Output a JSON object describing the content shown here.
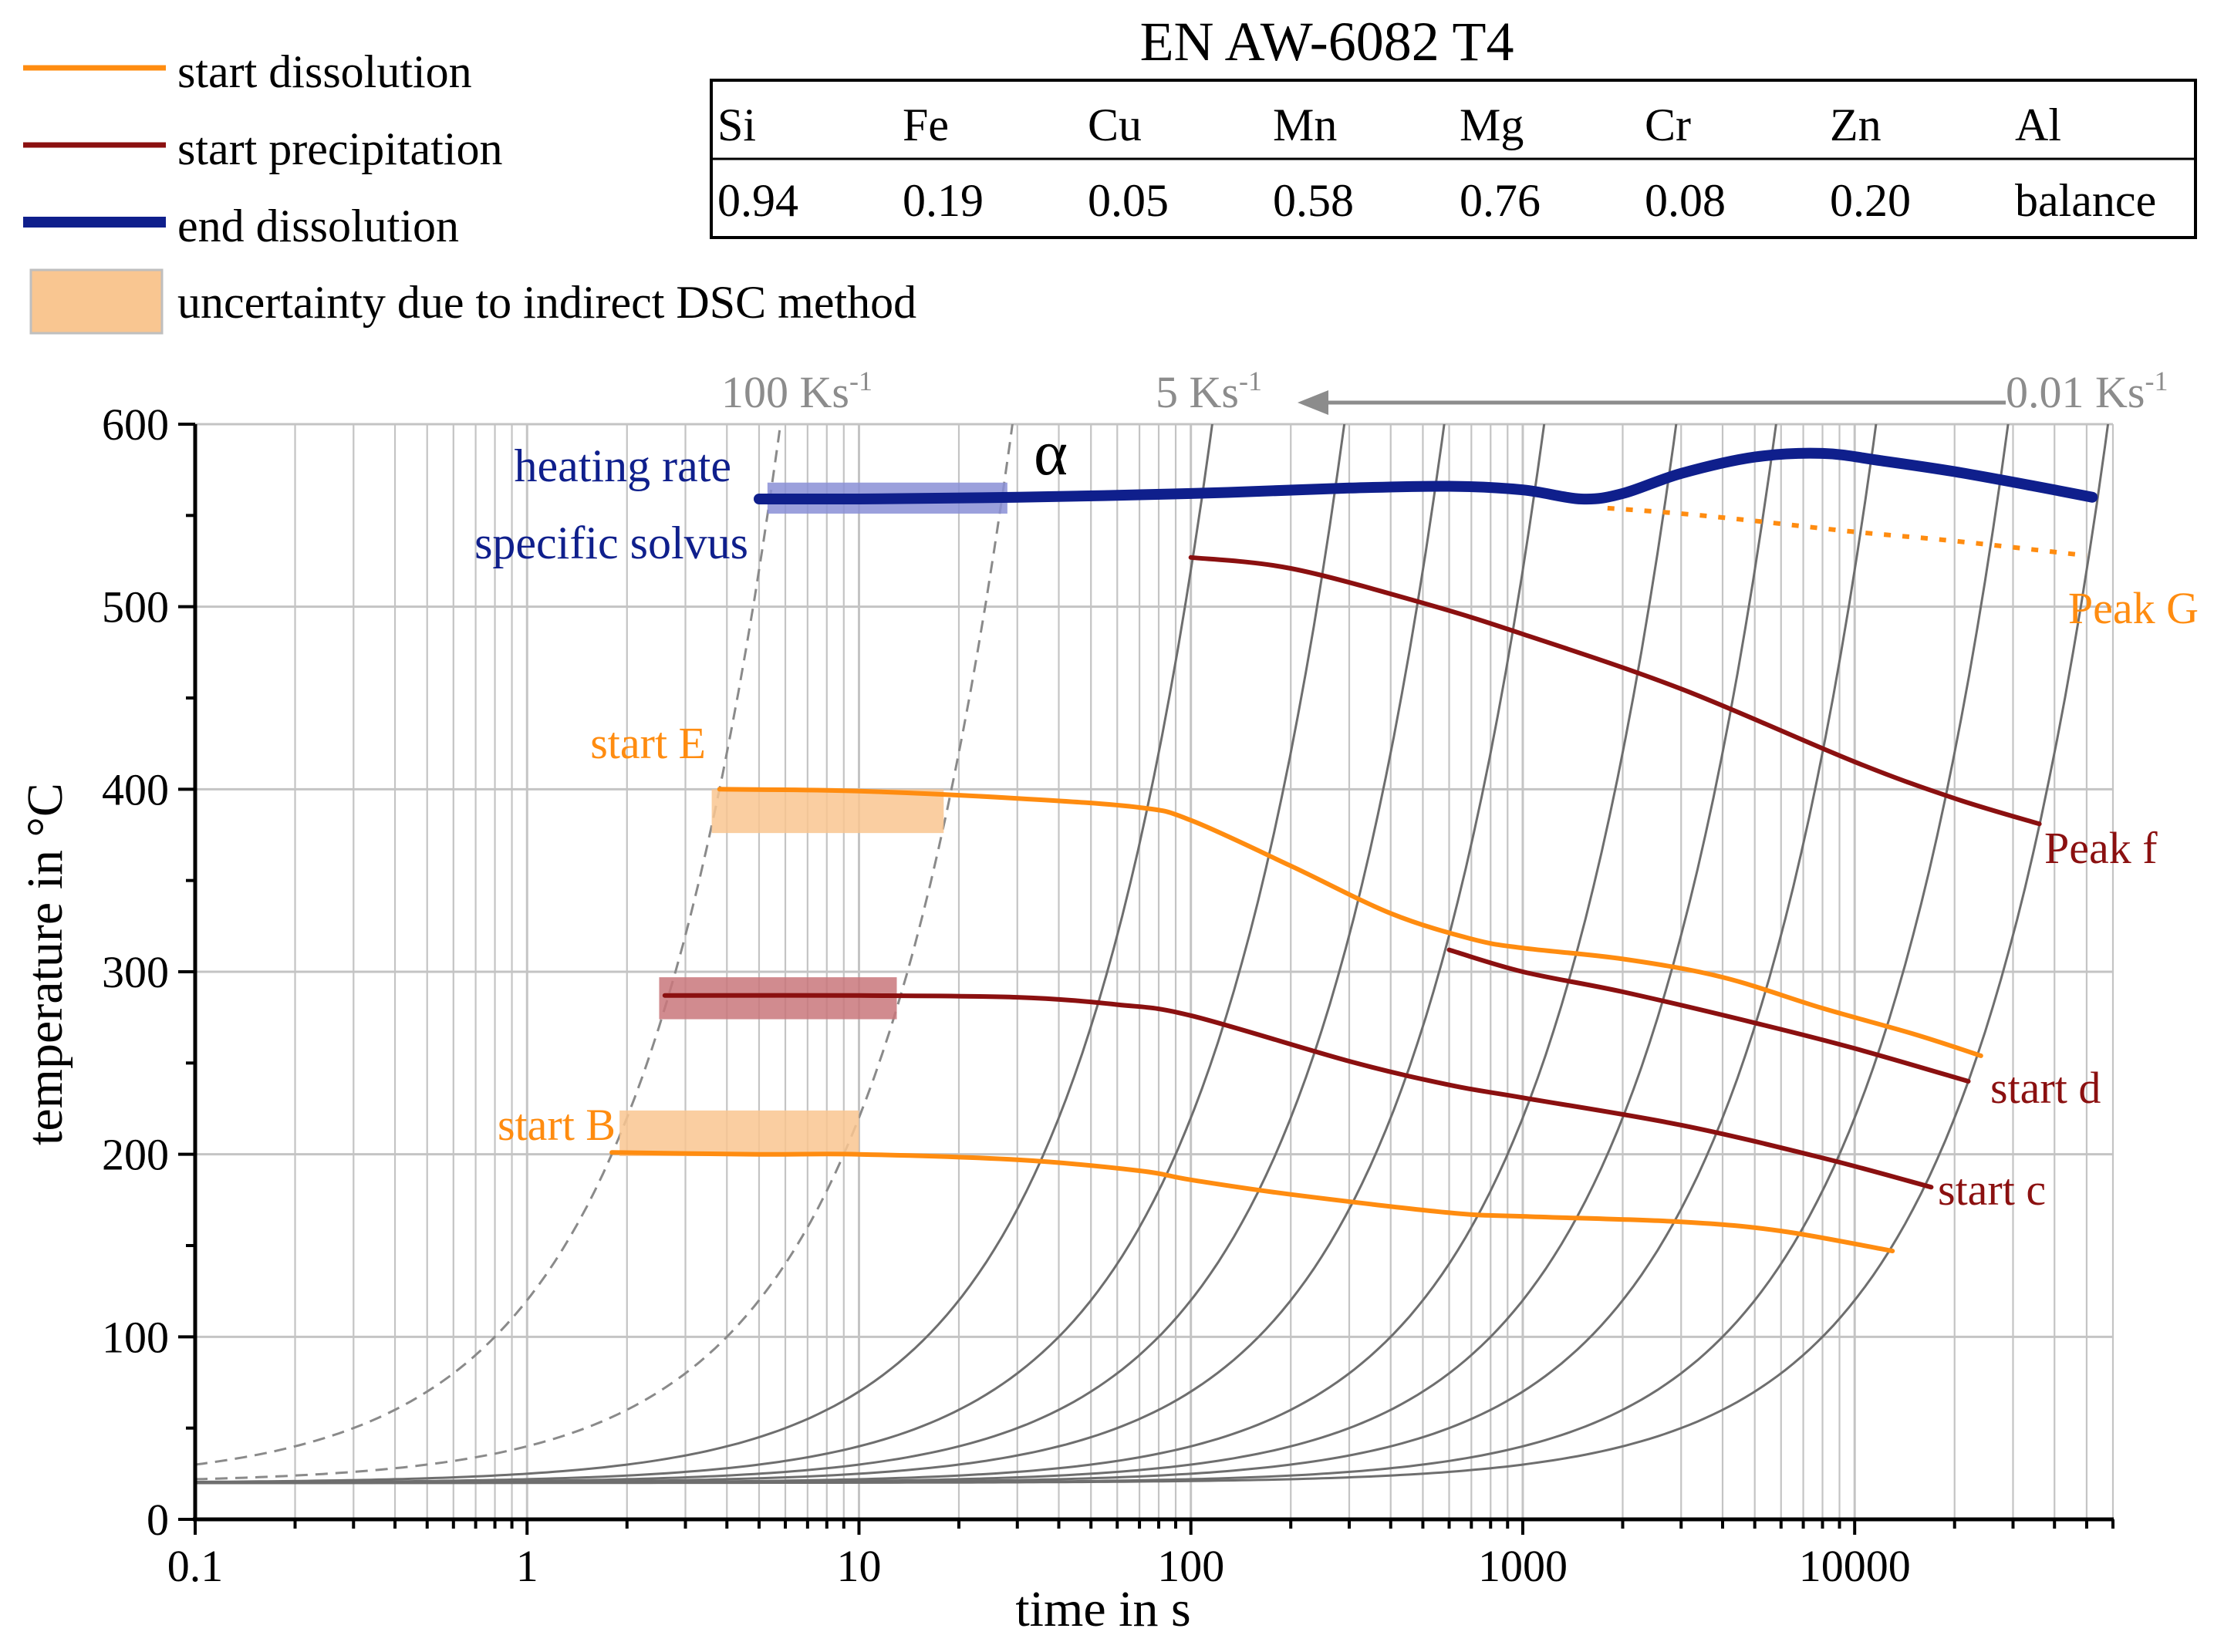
{
  "chart_data": {
    "type": "line",
    "title": "EN AW-6082 T4",
    "xlabel": "time in s",
    "ylabel": "temperature in °C",
    "xscale": "log",
    "xlim": [
      0.1,
      60000
    ],
    "ylim": [
      0,
      600
    ],
    "x_ticks": [
      {
        "value": 0.1,
        "label": "0.1"
      },
      {
        "value": 1,
        "label": "1"
      },
      {
        "value": 10,
        "label": "10"
      },
      {
        "value": 100,
        "label": "100"
      },
      {
        "value": 1000,
        "label": "1000"
      },
      {
        "value": 10000,
        "label": "10000"
      }
    ],
    "y_ticks": [
      {
        "value": 0,
        "label": "0"
      },
      {
        "value": 100,
        "label": "100"
      },
      {
        "value": 200,
        "label": "200"
      },
      {
        "value": 300,
        "label": "300"
      },
      {
        "value": 400,
        "label": "400"
      },
      {
        "value": 500,
        "label": "500"
      },
      {
        "value": 600,
        "label": "600"
      }
    ],
    "composition": {
      "headers": [
        "Si",
        "Fe",
        "Cu",
        "Mn",
        "Mg",
        "Cr",
        "Zn",
        "Al"
      ],
      "values": [
        "0.94",
        "0.19",
        "0.05",
        "0.58",
        "0.76",
        "0.08",
        "0.20",
        "balance"
      ]
    },
    "legend": [
      {
        "label": "start dissolution",
        "color": "#ff8c10",
        "style": "line"
      },
      {
        "label": "start precipitation",
        "color": "#8b1010",
        "style": "line"
      },
      {
        "label": "end dissolution",
        "color": "#0f1f8c",
        "style": "thick-line"
      },
      {
        "label": "uncertainty due to indirect DSC method",
        "color": "#f9c691",
        "style": "box"
      }
    ],
    "heating_rate_labels": [
      {
        "label": "100 Ks",
        "sup": "-1"
      },
      {
        "label": "5 Ks",
        "sup": "-1"
      },
      {
        "label": "0.01 Ks",
        "sup": "-1"
      }
    ],
    "guide_curves": {
      "rates_Ks": [
        100,
        20,
        5,
        2,
        1,
        0.5,
        0.2,
        0.1,
        0.05,
        0.02,
        0.01
      ],
      "dashed_rates_Ks": [
        100,
        20
      ],
      "start_temperature_C": 20
    },
    "series": [
      {
        "name": "end dissolution",
        "color": "#0f1f8c",
        "kind": "end",
        "points": [
          [
            5,
            559
          ],
          [
            10,
            559
          ],
          [
            30,
            560
          ],
          [
            100,
            562
          ],
          [
            300,
            565
          ],
          [
            600,
            566
          ],
          [
            1000,
            564
          ],
          [
            1500,
            559
          ],
          [
            2000,
            562
          ],
          [
            3000,
            573
          ],
          [
            5000,
            582
          ],
          [
            8000,
            584
          ],
          [
            12000,
            580
          ],
          [
            20000,
            574
          ],
          [
            35000,
            566
          ],
          [
            52000,
            560
          ]
        ]
      },
      {
        "name": "Peak G",
        "color": "#ff8c10",
        "kind": "dotted",
        "points": [
          [
            1800,
            554
          ],
          [
            3000,
            551
          ],
          [
            5000,
            547
          ],
          [
            10000,
            541
          ],
          [
            20000,
            536
          ],
          [
            50000,
            528
          ]
        ]
      },
      {
        "name": "Peak f",
        "color": "#8b1010",
        "kind": "solid",
        "points": [
          [
            100,
            527
          ],
          [
            200,
            521
          ],
          [
            500,
            502
          ],
          [
            1000,
            485
          ],
          [
            3000,
            455
          ],
          [
            10000,
            415
          ],
          [
            20000,
            395
          ],
          [
            36000,
            381
          ]
        ]
      },
      {
        "name": "start E",
        "color": "#ff8c10",
        "kind": "solid",
        "points": [
          [
            3.8,
            400
          ],
          [
            10,
            399
          ],
          [
            30,
            395
          ],
          [
            70,
            390
          ],
          [
            100,
            383
          ],
          [
            200,
            358
          ],
          [
            400,
            332
          ],
          [
            700,
            318
          ],
          [
            1000,
            313
          ],
          [
            2000,
            307
          ],
          [
            4000,
            297
          ],
          [
            8000,
            280
          ],
          [
            15000,
            266
          ],
          [
            24000,
            254
          ]
        ]
      },
      {
        "name": "start d",
        "color": "#8b1010",
        "kind": "solid",
        "points": [
          [
            600,
            312
          ],
          [
            1000,
            300
          ],
          [
            2000,
            289
          ],
          [
            5000,
            272
          ],
          [
            10000,
            258
          ],
          [
            22000,
            240
          ]
        ]
      },
      {
        "name": "start c",
        "color": "#8b1010",
        "kind": "solid",
        "points": [
          [
            2.6,
            287
          ],
          [
            10,
            287
          ],
          [
            30,
            286
          ],
          [
            60,
            282
          ],
          [
            100,
            276
          ],
          [
            300,
            251
          ],
          [
            600,
            238
          ],
          [
            1000,
            231
          ],
          [
            3000,
            216
          ],
          [
            8000,
            198
          ],
          [
            17000,
            182
          ]
        ]
      },
      {
        "name": "start B",
        "color": "#ff8c10",
        "kind": "solid",
        "points": [
          [
            1.8,
            201
          ],
          [
            5,
            200
          ],
          [
            10,
            200
          ],
          [
            30,
            197
          ],
          [
            70,
            191
          ],
          [
            100,
            186
          ],
          [
            200,
            178
          ],
          [
            600,
            168
          ],
          [
            1000,
            166
          ],
          [
            3000,
            163
          ],
          [
            6000,
            158
          ],
          [
            13000,
            147
          ]
        ]
      }
    ],
    "uncertainty_bands": [
      {
        "t_start": 5.3,
        "t_end": 28,
        "temp_low": 551,
        "temp_high": 568,
        "color": "#8a8fd6"
      },
      {
        "t_start": 3.6,
        "t_end": 18,
        "temp_low": 376,
        "temp_high": 400,
        "color": "#f9c691"
      },
      {
        "t_start": 2.5,
        "t_end": 13,
        "temp_low": 274,
        "temp_high": 297,
        "color": "#c9777b"
      },
      {
        "t_start": 1.9,
        "t_end": 10,
        "temp_low": 199,
        "temp_high": 224,
        "color": "#f9c691"
      }
    ],
    "annotations": {
      "alpha": "α",
      "solvus_line1": "heating rate",
      "solvus_line2": "specific solvus",
      "peak_G": "Peak G",
      "peak_f": "Peak f",
      "start_E": "start E",
      "start_d": "start d",
      "start_c": "start c",
      "start_B": "start B"
    }
  }
}
